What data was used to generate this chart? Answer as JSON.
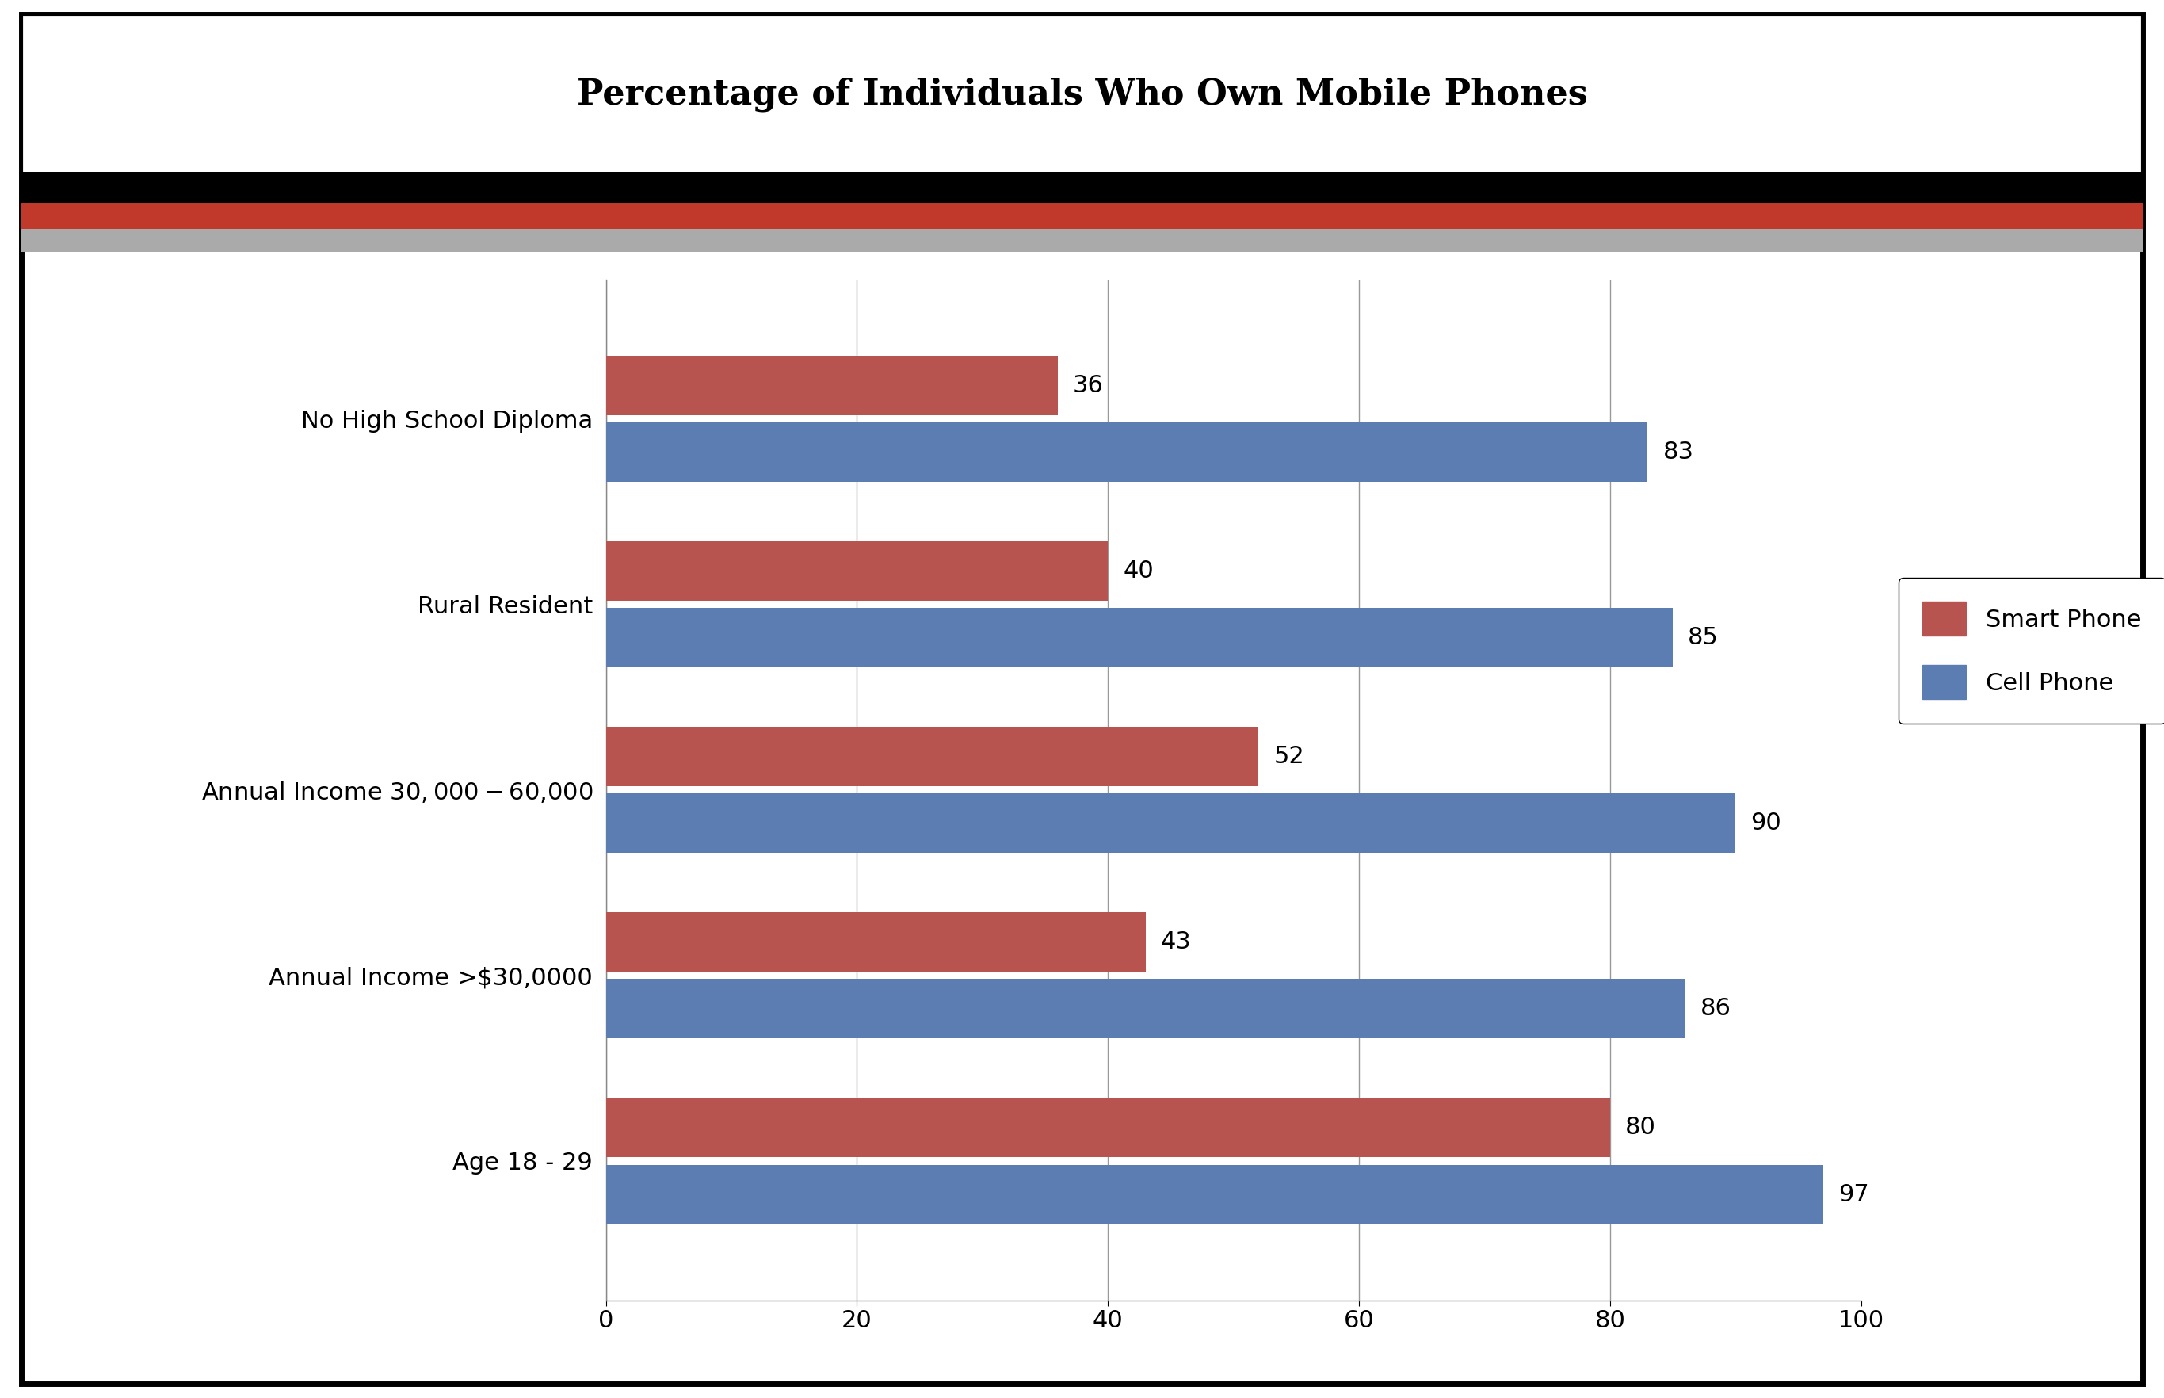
{
  "title": "Percentage of Individuals Who Own Mobile Phones",
  "categories": [
    "Age 18 - 29",
    "Annual Income >$30,0000",
    "Annual Income $30,000-$60,000",
    "Rural Resident",
    "No High School Diploma"
  ],
  "smart_phone": [
    80,
    43,
    52,
    40,
    36
  ],
  "cell_phone": [
    97,
    86,
    90,
    85,
    83
  ],
  "smart_phone_color": "#B85450",
  "cell_phone_color": "#5B7DB1",
  "bar_height": 0.32,
  "bar_gap": 0.04,
  "xlim": [
    0,
    100
  ],
  "xticks": [
    0,
    20,
    40,
    60,
    80,
    100
  ],
  "background_color": "#FFFFFF",
  "grid_color": "#999999",
  "label_fontsize": 22,
  "tick_fontsize": 22,
  "legend_fontsize": 22,
  "value_fontsize": 22,
  "strip_black": "#000000",
  "strip_red": "#C0392B",
  "strip_gray": "#AAAAAA"
}
